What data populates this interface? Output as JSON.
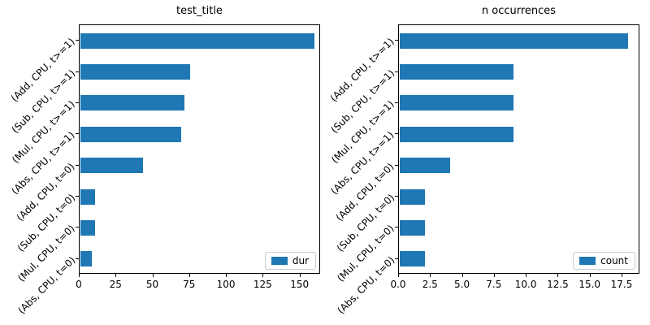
{
  "figure": {
    "bar_color": "#1f77b4",
    "background": "#ffffff",
    "spine_color": "#000000",
    "text_color": "#000000",
    "legend_border_color": "#cccccc"
  },
  "chart_data": [
    {
      "type": "bar",
      "orientation": "horizontal",
      "title": "test_title",
      "legend_label": "dur",
      "legend_position": "lower right",
      "grid": false,
      "categories": [
        "(Add, CPU, t>=1)",
        "(Sub, CPU, t>=1)",
        "(Mul, CPU, t>=1)",
        "(Abs, CPU, t>=1)",
        "(Add, CPU, t=0)",
        "(Sub, CPU, t=0)",
        "(Mul, CPU, t=0)",
        "(Abs, CPU, t=0)"
      ],
      "values": [
        160,
        75,
        71,
        69,
        43,
        10,
        10,
        8
      ],
      "xlim": [
        0,
        164
      ],
      "xtick_values": [
        0,
        25,
        50,
        75,
        100,
        125,
        150
      ],
      "xtick_labels": [
        "0",
        "25",
        "50",
        "75",
        "100",
        "125",
        "150"
      ]
    },
    {
      "type": "bar",
      "orientation": "horizontal",
      "title": "n occurrences",
      "legend_label": "count",
      "legend_position": "lower right",
      "grid": false,
      "categories": [
        "(Add, CPU, t>=1)",
        "(Sub, CPU, t>=1)",
        "(Mul, CPU, t>=1)",
        "(Abs, CPU, t>=1)",
        "(Add, CPU, t=0)",
        "(Sub, CPU, t=0)",
        "(Mul, CPU, t=0)",
        "(Abs, CPU, t=0)"
      ],
      "values": [
        18,
        9,
        9,
        9,
        4,
        2,
        2,
        2
      ],
      "xlim": [
        0,
        18.9
      ],
      "xtick_values": [
        0,
        2.5,
        5,
        7.5,
        10,
        12.5,
        15,
        17.5
      ],
      "xtick_labels": [
        "0.0",
        "2.5",
        "5.0",
        "7.5",
        "10.0",
        "12.5",
        "15.0",
        "17.5"
      ]
    }
  ]
}
